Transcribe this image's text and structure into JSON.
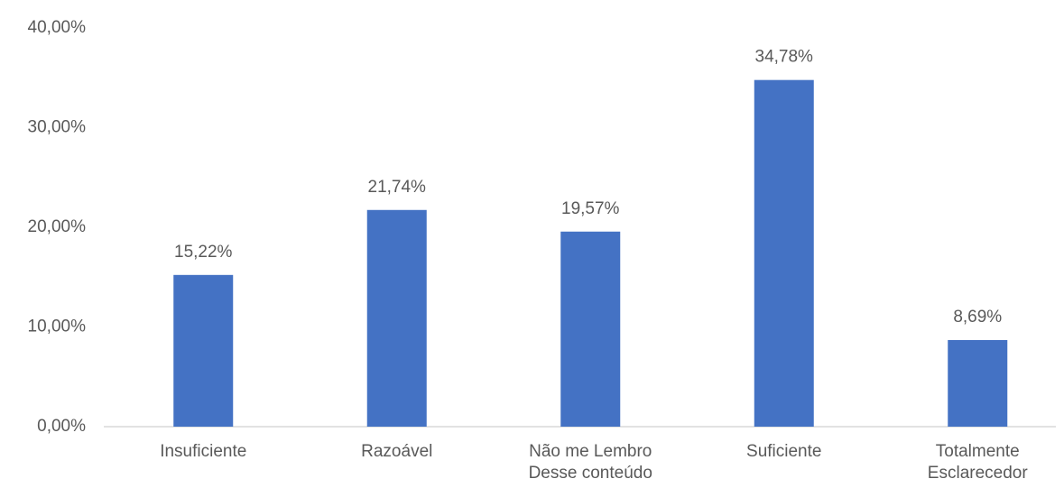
{
  "chart_data": {
    "type": "bar",
    "categories": [
      "Insuficiente",
      "Razoável",
      "Não me Lembro Desse conteúdo",
      "Suficiente",
      "Totalmente Esclarecedor"
    ],
    "values": [
      15.22,
      21.74,
      19.57,
      34.78,
      8.69
    ],
    "value_labels": [
      "15,22%",
      "21,74%",
      "19,57%",
      "34,78%",
      "8,69%"
    ],
    "color": "#4472c4",
    "ylim": [
      0,
      40
    ],
    "yticks": [
      {
        "value": 0,
        "label": "0,00%"
      },
      {
        "value": 10,
        "label": "10,00%"
      },
      {
        "value": 20,
        "label": "20,00%"
      },
      {
        "value": 30,
        "label": "30,00%"
      },
      {
        "value": 40,
        "label": "40,00%"
      }
    ],
    "grid": false
  }
}
